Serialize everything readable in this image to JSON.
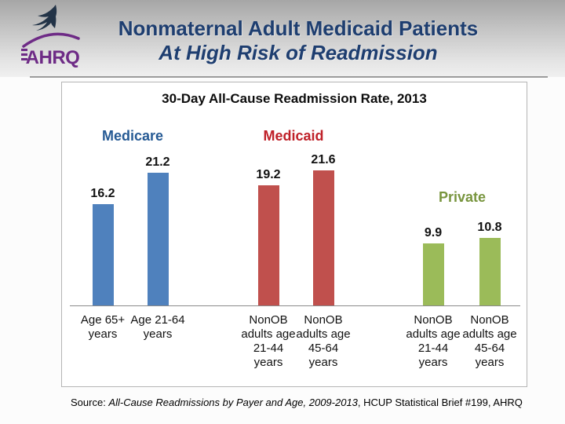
{
  "header": {
    "logo_text": "AHRQ",
    "logo_color": "#6e2b86",
    "title_line1": "Nonmaternal Adult Medicaid Patients",
    "title_line2": "At High Risk of Readmission",
    "title_color": "#1e3e70"
  },
  "chart_data": {
    "type": "bar",
    "title": "30-Day All-Cause Readmission Rate, 2013",
    "xlabel": "",
    "ylabel": "",
    "ylim": [
      0,
      25
    ],
    "y_axis_shown": false,
    "gridlines": false,
    "value_labels_shown": true,
    "legend_position": "group-labels-above-bars",
    "groups": [
      {
        "name": "Medicare",
        "bar_color": "#4f81bd",
        "label_color": "#265a94",
        "bars": [
          {
            "category_lines": [
              "Age 65+",
              "years"
            ],
            "value": 16.2
          },
          {
            "category_lines": [
              "Age 21-64",
              "years"
            ],
            "value": 21.2
          }
        ]
      },
      {
        "name": "Medicaid",
        "bar_color": "#c0504d",
        "label_color": "#bf2028",
        "bars": [
          {
            "category_lines": [
              "NonOB",
              "adults age",
              "21-44",
              "years"
            ],
            "value": 19.2
          },
          {
            "category_lines": [
              "NonOB",
              "adults age",
              "45-64",
              "years"
            ],
            "value": 21.6
          }
        ]
      },
      {
        "name": "Private",
        "bar_color": "#9bbb59",
        "label_color": "#78953e",
        "bars": [
          {
            "category_lines": [
              "NonOB",
              "adults age",
              "21-44",
              "years"
            ],
            "value": 9.9
          },
          {
            "category_lines": [
              "NonOB",
              "adults age",
              "45-64",
              "years"
            ],
            "value": 10.8
          }
        ]
      }
    ]
  },
  "source": {
    "prefix": "Source: ",
    "italic_part": "All-Cause Readmissions by Payer and Age, 2009-2013",
    "rest": ", HCUP Statistical Brief #199, AHRQ"
  }
}
